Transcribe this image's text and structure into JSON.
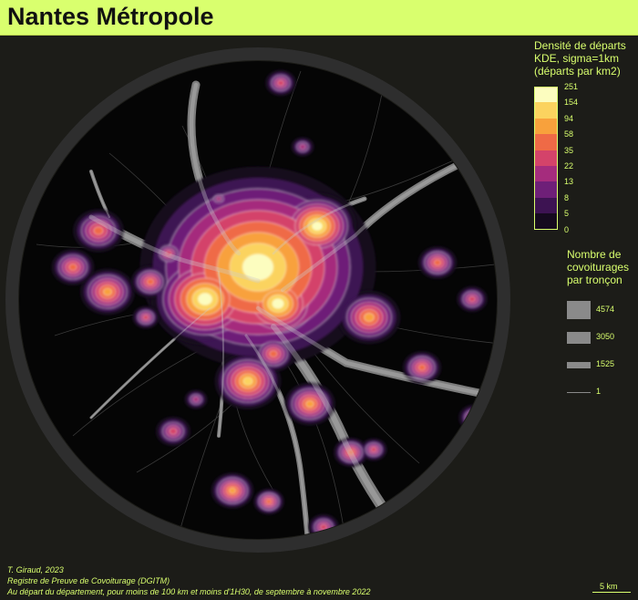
{
  "title": "Nantes Métropole",
  "density_legend": {
    "title_lines": [
      "Densité de départs",
      "KDE, sigma=1km",
      "(départs par km2)"
    ],
    "classes": [
      {
        "label": "251",
        "color": "#fcfdbf"
      },
      {
        "label": "154",
        "color": "#fbd35f"
      },
      {
        "label": "94",
        "color": "#f8a13c"
      },
      {
        "label": "58",
        "color": "#ef6a46"
      },
      {
        "label": "35",
        "color": "#d4436a"
      },
      {
        "label": "22",
        "color": "#a52c7d"
      },
      {
        "label": "13",
        "color": "#6e1f78"
      },
      {
        "label": "8",
        "color": "#3d1352"
      },
      {
        "label": "5",
        "color": "#150a1e"
      },
      {
        "label": "0",
        "color": null
      }
    ]
  },
  "flow_legend": {
    "title_lines": [
      "Nombre de",
      "covoiturages",
      "par tronçon"
    ],
    "items": [
      {
        "label": "4574",
        "value": 4574
      },
      {
        "label": "3050",
        "value": 3050
      },
      {
        "label": "1525",
        "value": 1525
      },
      {
        "label": "1",
        "value": 1
      }
    ]
  },
  "credits": [
    "T. Giraud, 2023",
    "Registre de Preuve de Covoiturage (DGITM)",
    "Au départ du département, pour moins de 100 km et moins d'1H30, de septembre à novembre 2022"
  ],
  "scale_label": "5 km",
  "colors": {
    "accent": "#d9ff6e",
    "background": "#1c1c18",
    "ring": "#2e2e2e",
    "map_bg": "#050505",
    "flow": "#8a8a8a"
  }
}
